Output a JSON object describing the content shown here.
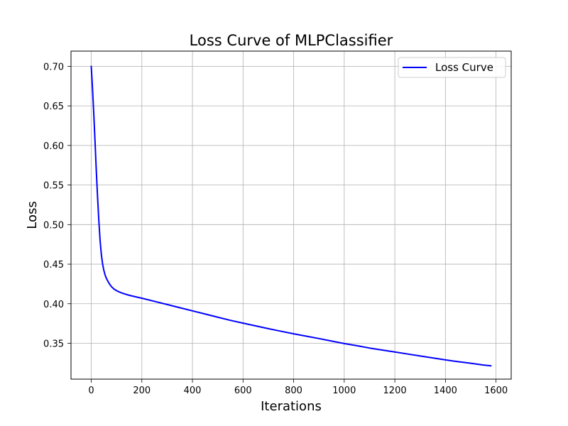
{
  "chart_data": {
    "type": "line",
    "title": "Loss Curve of MLPClassifier",
    "xlabel": "Iterations",
    "ylabel": "Loss",
    "xlim": [
      -80,
      1660
    ],
    "ylim": [
      0.3047,
      0.7192
    ],
    "xticks": [
      0,
      200,
      400,
      600,
      800,
      1000,
      1200,
      1400,
      1600
    ],
    "yticks": [
      0.35,
      0.4,
      0.45,
      0.5,
      0.55,
      0.6,
      0.65,
      0.7
    ],
    "ytick_labels": [
      "0.35",
      "0.40",
      "0.45",
      "0.50",
      "0.55",
      "0.60",
      "0.65",
      "0.70"
    ],
    "grid": true,
    "legend": {
      "position": "top-right",
      "entries": [
        "Loss Curve"
      ]
    },
    "series": [
      {
        "name": "Loss Curve",
        "color": "#0000ff",
        "x": [
          0,
          5,
          10,
          15,
          20,
          25,
          30,
          35,
          40,
          45,
          50,
          55,
          60,
          70,
          80,
          90,
          100,
          110,
          120,
          130,
          140,
          150,
          175,
          200,
          250,
          300,
          350,
          400,
          450,
          500,
          550,
          600,
          650,
          700,
          750,
          800,
          850,
          900,
          950,
          1000,
          1050,
          1100,
          1150,
          1200,
          1250,
          1300,
          1350,
          1400,
          1450,
          1500,
          1550,
          1580
        ],
        "y": [
          0.7,
          0.672,
          0.64,
          0.605,
          0.568,
          0.535,
          0.505,
          0.48,
          0.462,
          0.45,
          0.442,
          0.436,
          0.432,
          0.426,
          0.4215,
          0.4185,
          0.4165,
          0.415,
          0.4137,
          0.4126,
          0.4116,
          0.4107,
          0.4088,
          0.407,
          0.403,
          0.399,
          0.395,
          0.391,
          0.387,
          0.383,
          0.379,
          0.3755,
          0.372,
          0.3685,
          0.3652,
          0.362,
          0.359,
          0.356,
          0.3528,
          0.3497,
          0.347,
          0.344,
          0.3415,
          0.339,
          0.3365,
          0.334,
          0.3315,
          0.329,
          0.3268,
          0.3248,
          0.3225,
          0.3215
        ]
      }
    ]
  }
}
